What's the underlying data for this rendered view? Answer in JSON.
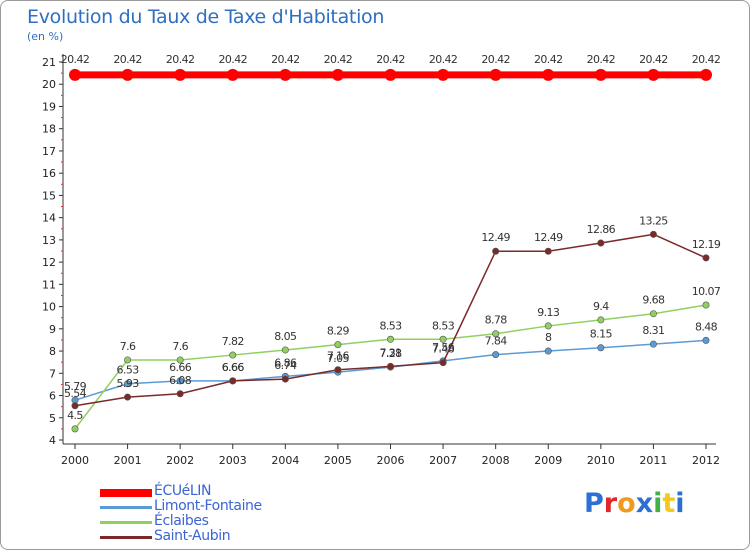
{
  "header": {
    "title": "Evolution du Taux de Taxe d'Habitation",
    "subtitle": "(en %)"
  },
  "logo": {
    "text": "Proxiti",
    "colors": [
      "#2d6fd3",
      "#e2262b",
      "#f29a1f",
      "#2d6fd3",
      "#42b045",
      "#f2c91f",
      "#2d6fd3"
    ]
  },
  "chart_data": {
    "type": "line",
    "x": [
      2000,
      2001,
      2002,
      2003,
      2004,
      2005,
      2006,
      2007,
      2008,
      2009,
      2010,
      2011,
      2012
    ],
    "ylim": [
      4,
      21
    ],
    "yticks": [
      4,
      5,
      6,
      7,
      8,
      9,
      10,
      11,
      12,
      13,
      14,
      15,
      16,
      17,
      18,
      19,
      20,
      21
    ],
    "grid": false,
    "legend_position": "bottom-left",
    "series": [
      {
        "name": "ÉCUéLIN",
        "color": "#ff0000",
        "values": [
          20.42,
          20.42,
          20.42,
          20.42,
          20.42,
          20.42,
          20.42,
          20.42,
          20.42,
          20.42,
          20.42,
          20.42,
          20.42
        ],
        "labels": [
          "20.42",
          "20.42",
          "20.42",
          "20.42",
          "20.42",
          "20.42",
          "20.42",
          "20.42",
          "20.42",
          "20.42",
          "20.42",
          "20.42",
          "20.42"
        ]
      },
      {
        "name": "Limont-Fontaine",
        "color": "#5b9bd5",
        "values": [
          5.79,
          6.53,
          6.66,
          6.66,
          6.86,
          7.05,
          7.28,
          7.56,
          7.84,
          8,
          8.15,
          8.31,
          8.48
        ],
        "labels": [
          "5.79",
          "6.53",
          "6.66",
          "6.66",
          "6.86",
          "7.05",
          "7.28",
          "7.56",
          "7.84",
          "8",
          "8.15",
          "8.31",
          "8.48"
        ]
      },
      {
        "name": "Éclaibes",
        "color": "#90d060",
        "values": [
          4.5,
          7.6,
          7.6,
          7.82,
          8.05,
          8.29,
          8.53,
          8.53,
          8.78,
          9.13,
          9.4,
          9.68,
          10.07
        ],
        "labels": [
          "4.5",
          "7.6",
          "7.6",
          "7.82",
          "8.05",
          "8.29",
          "8.53",
          "8.53",
          "8.78",
          "9.13",
          "9.4",
          "9.68",
          "10.07"
        ]
      },
      {
        "name": "Saint-Aubin",
        "color": "#7b2a2a",
        "values": [
          5.54,
          5.93,
          6.08,
          6.66,
          6.74,
          7.16,
          7.31,
          7.48,
          12.49,
          12.49,
          12.86,
          13.25,
          12.19
        ],
        "labels": [
          "5.54",
          "5.93",
          "6.08",
          "6.66",
          "6.74",
          "7.16",
          "7.31",
          "7.48",
          "12.49",
          "12.49",
          "12.86",
          "13.25",
          "12.19"
        ]
      }
    ]
  }
}
